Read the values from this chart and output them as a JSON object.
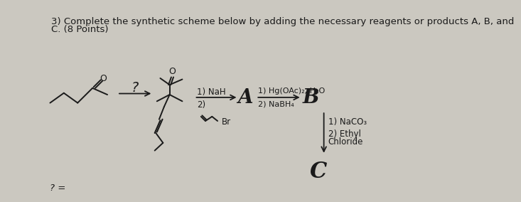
{
  "title_line1": "3) Complete the synthetic scheme below by adding the necessary reagents or products A, B, and",
  "title_line2": "C. (8 Points)",
  "bg_color": "#cbc8c0",
  "text_color": "#1a1a1a",
  "question_mark_bottom": "? =",
  "label_A": "A",
  "label_B": "B",
  "label_C": "C",
  "reagent1_top": "1) NaH",
  "reagent1_bot": "2)",
  "reagent2_top": "1) Hg(OAc)₂, H₂O",
  "reagent2_bot": "2) NaBH₄",
  "reagent3_top": "1) NaCO₃",
  "reagent3_mid": "2) Ethyl",
  "reagent3_bot": "Chloride",
  "question_label": "?"
}
